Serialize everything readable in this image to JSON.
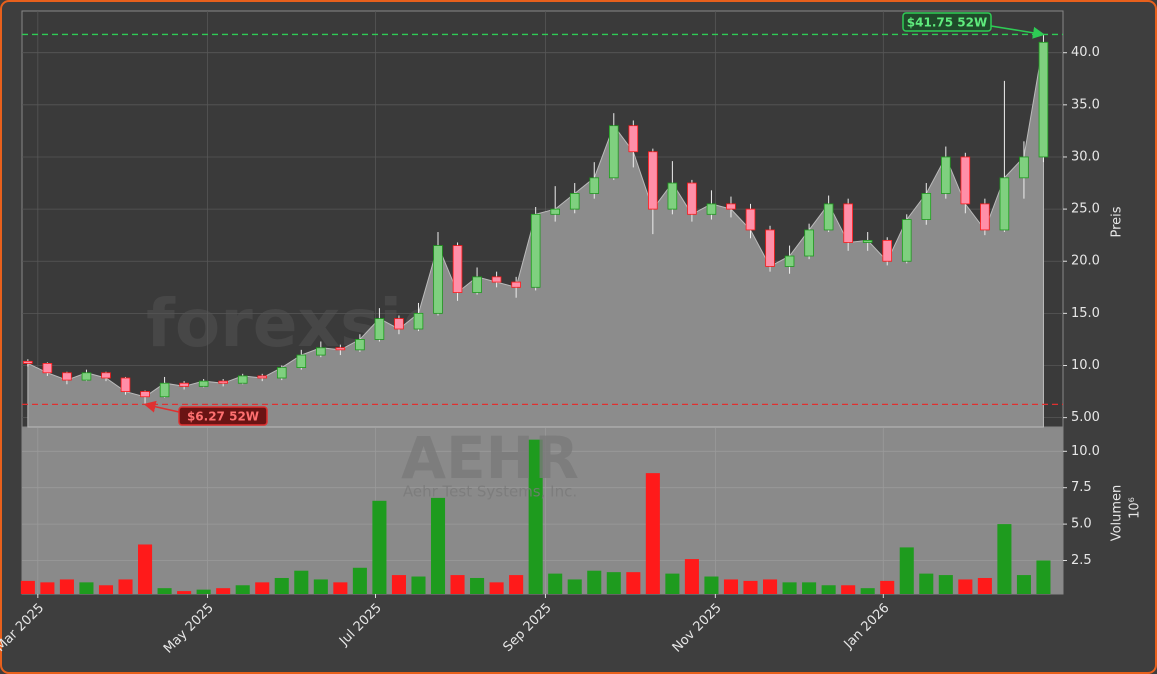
{
  "chart_data": {
    "type": "candlestick",
    "x": [
      0,
      1,
      2,
      3,
      4,
      5,
      6,
      7,
      8,
      9,
      10,
      11,
      12,
      13,
      14,
      15,
      16,
      17,
      18,
      19,
      20,
      21,
      22,
      23,
      24,
      25,
      26,
      27,
      28,
      29,
      30,
      31,
      32,
      33,
      34,
      35,
      36,
      37,
      38,
      39,
      40,
      41,
      42,
      43,
      44,
      45,
      46,
      47,
      48,
      49,
      50,
      51,
      52
    ],
    "xlim": [
      -0.3,
      53.0
    ],
    "xticks": [
      {
        "value": 0.51,
        "label": "Mar 2025"
      },
      {
        "value": 9.2,
        "label": "May 2025"
      },
      {
        "value": 17.8,
        "label": "Jul 2025"
      },
      {
        "value": 26.5,
        "label": "Sep 2025"
      },
      {
        "value": 35.2,
        "label": "Nov 2025"
      },
      {
        "value": 43.8,
        "label": "Jan 2026"
      }
    ],
    "open": [
      10.4,
      10.2,
      9.3,
      8.6,
      9.3,
      8.8,
      7.5,
      7.0,
      8.3,
      8.0,
      8.5,
      8.3,
      9.0,
      8.8,
      9.8,
      11.0,
      11.7,
      11.5,
      12.5,
      14.5,
      13.5,
      15.0,
      21.5,
      17.0,
      18.5,
      18.0,
      17.5,
      24.5,
      25.0,
      26.5,
      28.0,
      33.0,
      30.5,
      25.0,
      27.5,
      24.5,
      25.5,
      25.0,
      23.0,
      19.5,
      20.5,
      23.0,
      25.5,
      21.8,
      22.0,
      20.0,
      24.0,
      26.5,
      30.0,
      25.5,
      23.0,
      28.0,
      30.0
    ],
    "high": [
      10.6,
      10.3,
      9.4,
      9.6,
      9.4,
      8.9,
      7.6,
      8.9,
      8.5,
      8.7,
      8.7,
      9.2,
      9.2,
      10.0,
      11.5,
      12.3,
      12.0,
      13.0,
      15.5,
      14.8,
      16.0,
      22.8,
      21.8,
      19.4,
      19.0,
      18.5,
      25.2,
      27.2,
      27.5,
      29.5,
      34.2,
      33.5,
      30.8,
      29.6,
      27.8,
      26.8,
      26.2,
      25.5,
      23.4,
      21.5,
      23.6,
      26.3,
      26.0,
      22.8,
      22.3,
      24.5,
      27.5,
      31.0,
      30.4,
      26.0,
      37.3,
      31.5,
      41.75
    ],
    "low": [
      9.9,
      9.0,
      8.2,
      8.5,
      8.5,
      7.2,
      6.27,
      6.9,
      7.7,
      7.9,
      8.0,
      8.2,
      8.5,
      8.6,
      9.6,
      10.8,
      11.0,
      11.3,
      12.3,
      13.0,
      13.3,
      14.8,
      16.2,
      16.8,
      17.5,
      16.5,
      17.2,
      23.8,
      24.6,
      26.0,
      27.8,
      29.0,
      22.6,
      24.5,
      23.8,
      24.0,
      24.2,
      22.2,
      19.0,
      18.8,
      20.2,
      22.8,
      21.0,
      21.0,
      19.6,
      19.8,
      23.5,
      26.0,
      24.6,
      22.5,
      22.8,
      26.0,
      29.5
    ],
    "close": [
      10.2,
      9.3,
      8.6,
      9.3,
      8.8,
      7.5,
      7.0,
      8.3,
      8.0,
      8.5,
      8.3,
      9.0,
      8.8,
      9.8,
      11.0,
      11.7,
      11.5,
      12.5,
      14.5,
      13.5,
      15.0,
      21.5,
      17.0,
      18.5,
      18.0,
      17.5,
      24.5,
      25.0,
      26.5,
      28.0,
      33.0,
      30.5,
      25.0,
      27.5,
      24.5,
      25.5,
      25.0,
      23.0,
      19.5,
      20.5,
      23.0,
      25.5,
      21.8,
      22.0,
      20.0,
      24.0,
      26.5,
      30.0,
      25.5,
      23.0,
      28.0,
      30.0,
      41.0
    ],
    "ylim": [
      4.1,
      44.0
    ],
    "yticks": [
      {
        "value": 5,
        "label": "5.00"
      },
      {
        "value": 10,
        "label": "10.0"
      },
      {
        "value": 15,
        "label": "15.0"
      },
      {
        "value": 20,
        "label": "20.0"
      },
      {
        "value": 25,
        "label": "25.0"
      },
      {
        "value": 30,
        "label": "30.0"
      },
      {
        "value": 35,
        "label": "35.0"
      },
      {
        "value": 40,
        "label": "40.0"
      }
    ],
    "ylabel": "Preis",
    "up_color": "#1e9b1e",
    "down_color": "#ff1a1a",
    "area_color": "#8c8c8c",
    "grid": true,
    "hlines": [
      {
        "value": 41.75,
        "label": "$41.75 52W",
        "color": "#2ecc55"
      },
      {
        "value": 6.27,
        "label": "$6.27 52W",
        "color": "#e03030"
      }
    ],
    "watermark": "forexsignale.trade",
    "symbol": "AEHR",
    "company": "Aehr Test Systems, Inc.",
    "volume": {
      "values": [
        1.1,
        1.0,
        1.2,
        1.0,
        0.8,
        1.2,
        3.6,
        0.6,
        0.4,
        0.5,
        0.6,
        0.8,
        1.0,
        1.3,
        1.8,
        1.2,
        1.0,
        2.0,
        6.6,
        1.5,
        1.4,
        6.8,
        1.5,
        1.3,
        1.0,
        1.5,
        10.8,
        1.6,
        1.2,
        1.8,
        1.7,
        1.7,
        8.5,
        1.6,
        2.6,
        1.4,
        1.2,
        1.1,
        1.2,
        1.0,
        1.0,
        0.8,
        0.8,
        0.6,
        1.1,
        3.4,
        1.6,
        1.5,
        1.2,
        1.3,
        5.0,
        1.5,
        2.5
      ],
      "ylim": [
        0.2,
        11.6
      ],
      "yticks": [
        2.5,
        {
          "value": 5,
          "label": "5.0"
        },
        {
          "value": 7.5,
          "label": "7.5"
        },
        {
          "value": 10,
          "label": "10.0"
        }
      ],
      "ylabel": "Volumen",
      "offset_label": "10⁶"
    }
  }
}
